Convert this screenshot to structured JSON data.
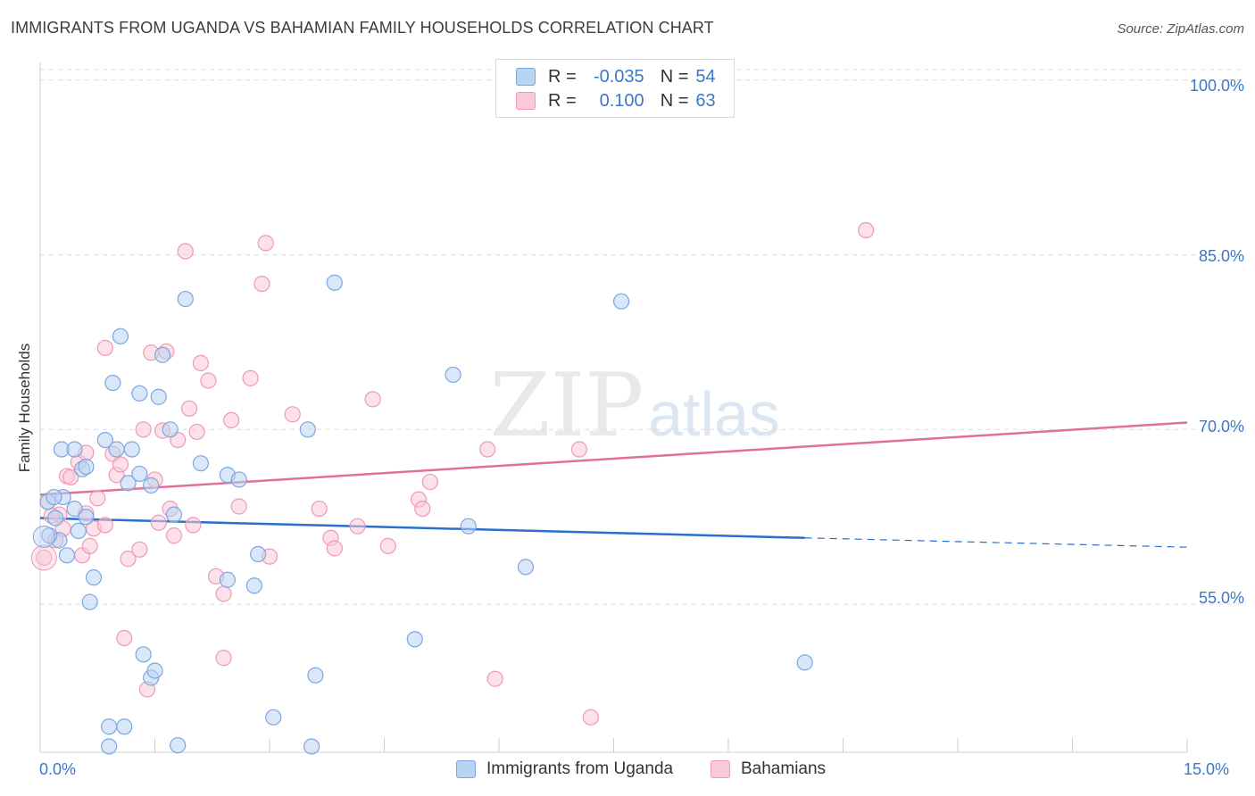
{
  "header": {
    "title": "IMMIGRANTS FROM UGANDA VS BAHAMIAN FAMILY HOUSEHOLDS CORRELATION CHART",
    "source": "Source: ZipAtlas.com"
  },
  "watermark": {
    "zip": "ZIP",
    "atlas": "atlas"
  },
  "legend": {
    "rows": [
      {
        "r_label": "R =",
        "r_value": "-0.035",
        "n_label": "N =",
        "n_value": "54",
        "color": "#b9d3f3",
        "border": "#7ba7e0"
      },
      {
        "r_label": "R =",
        "r_value": "0.100",
        "n_label": "N =",
        "n_value": "63",
        "color": "#f9c9d8",
        "border": "#ee9ab4"
      }
    ]
  },
  "bottom_legend": {
    "uganda": "Immigrants from Uganda",
    "bahamians": "Bahamians"
  },
  "chart_data": {
    "type": "scatter",
    "title": "IMMIGRANTS FROM UGANDA VS BAHAMIAN FAMILY HOUSEHOLDS CORRELATION CHART",
    "xlabel": "",
    "ylabel": "Family Households",
    "xlim": [
      0,
      15
    ],
    "ylim": [
      42.3,
      101.5
    ],
    "x_tick_labels": [
      "0.0%",
      "15.0%"
    ],
    "y_ticks": [
      55,
      70,
      85,
      100
    ],
    "y_tick_labels": [
      "55.0%",
      "70.0%",
      "85.0%",
      "100.0%"
    ],
    "grid": true,
    "series": [
      {
        "name": "Immigrants from Uganda",
        "color": "#7ba7e0",
        "fill": "#b9d3f3",
        "line_color": "#2a6fcb",
        "trend": {
          "x0": 0,
          "y0": 62.4,
          "x1": 10.0,
          "y1": 60.7,
          "dash_to_x": 15,
          "dash_to_y": 59.9
        },
        "points": [
          [
            0.1,
            63.8
          ],
          [
            0.2,
            62.4
          ],
          [
            0.3,
            64.2
          ],
          [
            0.35,
            59.2
          ],
          [
            0.45,
            63.2
          ],
          [
            0.25,
            60.5
          ],
          [
            0.28,
            68.3
          ],
          [
            0.45,
            68.3
          ],
          [
            0.55,
            66.6
          ],
          [
            0.5,
            61.3
          ],
          [
            0.6,
            66.8
          ],
          [
            0.7,
            57.3
          ],
          [
            0.65,
            55.2
          ],
          [
            0.6,
            62.5
          ],
          [
            0.85,
            69.1
          ],
          [
            0.95,
            74.0
          ],
          [
            1.0,
            68.3
          ],
          [
            1.05,
            78.0
          ],
          [
            1.15,
            65.4
          ],
          [
            1.2,
            68.3
          ],
          [
            1.3,
            73.1
          ],
          [
            1.3,
            66.2
          ],
          [
            1.45,
            65.2
          ],
          [
            1.55,
            72.8
          ],
          [
            1.6,
            76.4
          ],
          [
            1.7,
            70.0
          ],
          [
            1.75,
            62.7
          ],
          [
            1.9,
            81.2
          ],
          [
            2.1,
            67.1
          ],
          [
            2.45,
            66.1
          ],
          [
            2.6,
            65.7
          ],
          [
            2.45,
            57.1
          ],
          [
            2.8,
            56.6
          ],
          [
            2.85,
            59.3
          ],
          [
            3.5,
            70.0
          ],
          [
            3.85,
            82.6
          ],
          [
            1.35,
            50.7
          ],
          [
            1.45,
            48.7
          ],
          [
            1.5,
            49.3
          ],
          [
            0.9,
            44.5
          ],
          [
            1.1,
            44.5
          ],
          [
            0.9,
            42.8
          ],
          [
            1.8,
            42.9
          ],
          [
            3.05,
            45.3
          ],
          [
            3.55,
            42.8
          ],
          [
            3.6,
            48.9
          ],
          [
            4.9,
            52.0
          ],
          [
            5.4,
            74.7
          ],
          [
            5.6,
            61.7
          ],
          [
            6.35,
            58.2
          ],
          [
            7.6,
            81.0
          ],
          [
            10.0,
            50.0
          ],
          [
            0.18,
            64.2
          ],
          [
            0.12,
            60.9
          ]
        ]
      },
      {
        "name": "Bahamians",
        "color": "#ee9ab4",
        "fill": "#f9c9d8",
        "line_color": "#e07098",
        "trend": {
          "x0": 0,
          "y0": 64.4,
          "x1": 15,
          "y1": 70.6
        },
        "points": [
          [
            0.05,
            59.0
          ],
          [
            0.1,
            63.8
          ],
          [
            0.2,
            60.5
          ],
          [
            0.25,
            62.7
          ],
          [
            0.3,
            61.5
          ],
          [
            0.35,
            66.0
          ],
          [
            0.4,
            65.9
          ],
          [
            0.5,
            67.2
          ],
          [
            0.55,
            59.2
          ],
          [
            0.6,
            62.8
          ],
          [
            0.65,
            60.0
          ],
          [
            0.7,
            61.5
          ],
          [
            0.75,
            64.1
          ],
          [
            0.85,
            61.8
          ],
          [
            0.85,
            77.0
          ],
          [
            0.95,
            67.9
          ],
          [
            1.0,
            66.1
          ],
          [
            1.05,
            67.0
          ],
          [
            1.15,
            58.9
          ],
          [
            1.3,
            59.7
          ],
          [
            1.35,
            70.0
          ],
          [
            1.45,
            76.6
          ],
          [
            1.5,
            65.7
          ],
          [
            1.55,
            62.0
          ],
          [
            1.6,
            69.9
          ],
          [
            1.65,
            76.7
          ],
          [
            1.7,
            63.2
          ],
          [
            1.75,
            60.9
          ],
          [
            1.8,
            69.1
          ],
          [
            1.9,
            85.3
          ],
          [
            1.95,
            71.8
          ],
          [
            2.0,
            61.8
          ],
          [
            2.05,
            69.8
          ],
          [
            2.1,
            75.7
          ],
          [
            2.2,
            74.2
          ],
          [
            2.3,
            57.4
          ],
          [
            2.4,
            55.9
          ],
          [
            2.5,
            70.8
          ],
          [
            2.6,
            63.4
          ],
          [
            2.75,
            74.4
          ],
          [
            2.9,
            82.5
          ],
          [
            2.95,
            86.0
          ],
          [
            3.0,
            59.1
          ],
          [
            3.3,
            71.3
          ],
          [
            3.65,
            63.2
          ],
          [
            3.8,
            60.7
          ],
          [
            3.85,
            59.8
          ],
          [
            4.15,
            61.7
          ],
          [
            4.35,
            72.6
          ],
          [
            4.55,
            60.0
          ],
          [
            4.95,
            64.0
          ],
          [
            5.0,
            63.2
          ],
          [
            5.1,
            65.5
          ],
          [
            5.85,
            68.3
          ],
          [
            7.05,
            68.3
          ],
          [
            10.8,
            87.1
          ],
          [
            1.1,
            52.1
          ],
          [
            1.4,
            47.7
          ],
          [
            2.4,
            50.4
          ],
          [
            5.95,
            48.6
          ],
          [
            7.2,
            45.3
          ],
          [
            0.6,
            68.0
          ],
          [
            0.15,
            62.6
          ]
        ]
      }
    ]
  }
}
